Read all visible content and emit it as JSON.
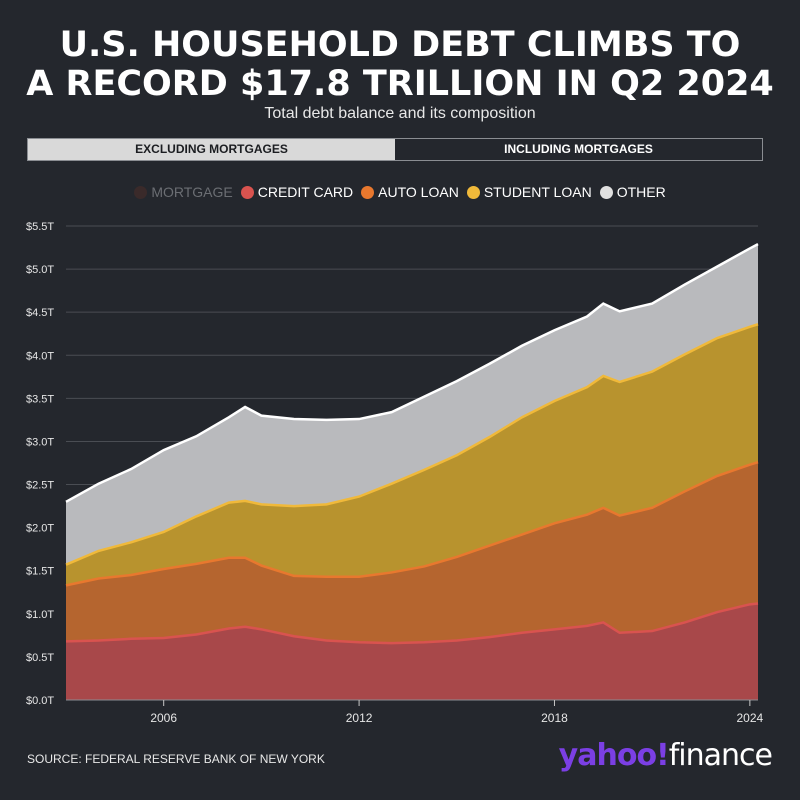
{
  "title_line1": "U.S. HOUSEHOLD DEBT CLIMBS TO",
  "title_line2": "A RECORD $17.8 TRILLION IN Q2 2024",
  "subtitle": "Total debt balance and its composition",
  "toggle": {
    "active_label": "EXCLUDING MORTGAGES",
    "inactive_label": "INCLUDING MORTGAGES"
  },
  "legend": [
    {
      "label": "MORTGAGE",
      "color": "#3a2a2a",
      "text_color": "#6b6e73"
    },
    {
      "label": "CREDIT CARD",
      "color": "#d9534f",
      "text_color": "#ffffff"
    },
    {
      "label": "AUTO LOAN",
      "color": "#e8782e",
      "text_color": "#ffffff"
    },
    {
      "label": "STUDENT LOAN",
      "color": "#f0b93a",
      "text_color": "#ffffff"
    },
    {
      "label": "OTHER",
      "color": "#e0e0e0",
      "text_color": "#ffffff"
    }
  ],
  "source": "SOURCE: FEDERAL RESERVE BANK OF NEW YORK",
  "logo": {
    "part1": "yahoo!",
    "part2": "finance"
  },
  "chart_data": {
    "type": "area",
    "stacked": true,
    "x": [
      2003.0,
      2004.0,
      2005.0,
      2006.0,
      2007.0,
      2008.0,
      2008.5,
      2009.0,
      2010.0,
      2011.0,
      2012.0,
      2013.0,
      2014.0,
      2015.0,
      2016.0,
      2017.0,
      2018.0,
      2019.0,
      2019.5,
      2020.0,
      2021.0,
      2022.0,
      2023.0,
      2024.0,
      2024.25
    ],
    "series": [
      {
        "name": "CREDIT CARD",
        "color": "#a8484a",
        "values": [
          0.68,
          0.69,
          0.71,
          0.72,
          0.76,
          0.83,
          0.85,
          0.82,
          0.74,
          0.69,
          0.67,
          0.66,
          0.67,
          0.69,
          0.73,
          0.78,
          0.82,
          0.86,
          0.9,
          0.78,
          0.8,
          0.9,
          1.02,
          1.11,
          1.12
        ]
      },
      {
        "name": "AUTO LOAN",
        "color": "#b5652f",
        "values": [
          0.65,
          0.72,
          0.74,
          0.8,
          0.82,
          0.82,
          0.8,
          0.74,
          0.7,
          0.74,
          0.76,
          0.82,
          0.88,
          0.97,
          1.06,
          1.14,
          1.23,
          1.29,
          1.33,
          1.36,
          1.43,
          1.52,
          1.58,
          1.62,
          1.64
        ]
      },
      {
        "name": "STUDENT LOAN",
        "color": "#b8932e",
        "values": [
          0.24,
          0.32,
          0.38,
          0.43,
          0.55,
          0.64,
          0.66,
          0.71,
          0.81,
          0.84,
          0.93,
          1.03,
          1.12,
          1.18,
          1.26,
          1.36,
          1.42,
          1.48,
          1.53,
          1.55,
          1.58,
          1.59,
          1.6,
          1.6,
          1.6
        ]
      },
      {
        "name": "OTHER",
        "color": "#b9babd",
        "values": [
          0.73,
          0.78,
          0.85,
          0.95,
          0.93,
          0.99,
          1.09,
          1.03,
          1.01,
          0.98,
          0.9,
          0.83,
          0.85,
          0.86,
          0.85,
          0.83,
          0.82,
          0.82,
          0.84,
          0.82,
          0.79,
          0.81,
          0.83,
          0.91,
          0.93
        ]
      }
    ],
    "xticks": [
      2006,
      2012,
      2018,
      2024
    ],
    "yticks": [
      "$0.0T",
      "$0.5T",
      "$1.0T",
      "$1.5T",
      "$2.0T",
      "$2.5T",
      "$3.0T",
      "$3.5T",
      "$4.0T",
      "$4.5T",
      "$5.0T",
      "$5.5T"
    ],
    "xlim": [
      2003.0,
      2024.25
    ],
    "ylim": [
      0,
      5.5
    ],
    "grid": true
  }
}
